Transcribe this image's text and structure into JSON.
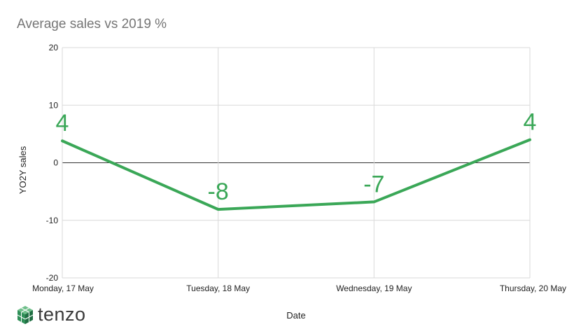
{
  "chart_data": {
    "type": "line",
    "title": "Average sales vs 2019 %",
    "xlabel": "Date",
    "ylabel": "YO2Y sales",
    "categories": [
      "Monday, 17 May",
      "Tuesday, 18 May",
      "Wednesday, 19 May",
      "Thursday, 20 May"
    ],
    "series": [
      {
        "values": [
          3.8,
          -8.1,
          -6.8,
          4.0
        ],
        "labels": [
          "4",
          "-8",
          "-7",
          "4"
        ]
      }
    ],
    "ylim": [
      -20,
      20
    ],
    "yticks": [
      20,
      10,
      0,
      -10,
      -20
    ],
    "grid": true,
    "legend": "none",
    "colors": {
      "line": "#3aa757",
      "grid": "#d9d9d9",
      "zero": "#333333"
    }
  },
  "logo": {
    "text": "tenzo",
    "icon": "cube-logo-icon"
  }
}
